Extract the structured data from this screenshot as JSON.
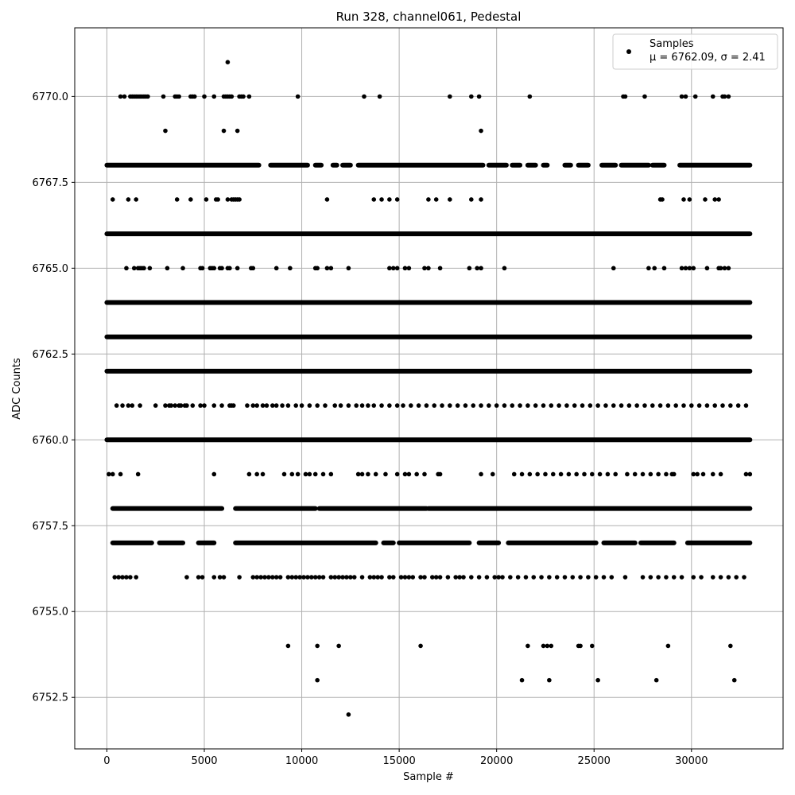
{
  "chart_data": {
    "type": "scatter",
    "title": "Run 328, channel061, Pedestal",
    "xlabel": "Sample #",
    "ylabel": "ADC Counts",
    "xlim": [
      -1650,
      34700
    ],
    "ylim": [
      6751.0,
      6772.0
    ],
    "xticks": [
      0,
      5000,
      10000,
      15000,
      20000,
      25000,
      30000
    ],
    "yticks": [
      6752.5,
      6755.0,
      6757.5,
      6760.0,
      6762.5,
      6765.0,
      6767.5,
      6770.0
    ],
    "xtick_labels": [
      "0",
      "5000",
      "10000",
      "15000",
      "20000",
      "25000",
      "30000"
    ],
    "ytick_labels": [
      "6752.5",
      "6755.0",
      "6757.5",
      "6760.0",
      "6762.5",
      "6765.0",
      "6767.5",
      "6770.0"
    ],
    "grid": true,
    "legend_position": "top-right",
    "marker_color": "#000000",
    "x_range": [
      0,
      33000
    ],
    "series": [
      {
        "name": "Samples",
        "stats_label": "μ = 6762.09, σ = 2.41",
        "levels": [
          {
            "y": 6771,
            "x": [
              6200
            ]
          },
          {
            "y": 6770,
            "x": [
              700,
              900,
              1200,
              1300,
              1400,
              1500,
              1600,
              1700,
              1800,
              1900,
              2000,
              2100,
              2900,
              3500,
              3600,
              3700,
              4300,
              4400,
              4500,
              5000,
              5500,
              6000,
              6100,
              6200,
              6300,
              6400,
              6800,
              6900,
              7000,
              7300,
              9800,
              13200,
              14000,
              17600,
              18700,
              19100,
              21700,
              26500,
              26600,
              27600,
              29500,
              29700,
              30200,
              31100,
              31600,
              31700,
              31900
            ]
          },
          {
            "y": 6769,
            "x": [
              3000,
              6000,
              6700,
              19200
            ]
          },
          {
            "y": 6767,
            "x": [
              300,
              1100,
              1500,
              3600,
              4300,
              5100,
              5600,
              5700,
              6200,
              6400,
              6500,
              6600,
              6700,
              6800,
              11300,
              13700,
              14100,
              14500,
              14900,
              16500,
              16900,
              17600,
              18700,
              19200,
              28400,
              28500,
              29600,
              29900,
              30700,
              31200,
              31400
            ]
          },
          {
            "y": 6765,
            "x": [
              1000,
              1400,
              1600,
              1700,
              1800,
              1900,
              2200,
              3100,
              3900,
              4800,
              4900,
              5300,
              5400,
              5500,
              5800,
              5900,
              6200,
              6300,
              6700,
              7400,
              7500,
              8700,
              9400,
              10700,
              10800,
              11300,
              11500,
              12400,
              14500,
              14700,
              14900,
              15300,
              15500,
              16300,
              16500,
              17100,
              18600,
              19000,
              19200,
              20400,
              26000,
              27800,
              28100,
              28600,
              29500,
              29700,
              29900,
              30100,
              30800,
              31400,
              31500,
              31700,
              31900
            ]
          },
          {
            "y": 6761,
            "x": [
              500,
              800,
              1100,
              1300,
              1700,
              2500,
              3000,
              3200,
              3300,
              3500,
              3700,
              3800,
              4000,
              4100,
              4400,
              4800,
              5000,
              5500,
              5900,
              6300,
              6400,
              6500,
              7200,
              7500,
              7700,
              8000,
              8200,
              8500,
              8700,
              9000,
              9300,
              9700,
              10000,
              10400,
              10800,
              11200,
              11700,
              12000,
              12400,
              12800,
              13100,
              13400,
              13700,
              14100,
              14500,
              14900,
              15200,
              15600,
              16000,
              16400,
              16800,
              17200,
              17600,
              18000,
              18400,
              18800,
              19200,
              19600,
              20000,
              20400,
              20800,
              21200,
              21600,
              22000,
              22400,
              22800,
              23200,
              23600,
              24000,
              24400,
              24800,
              25200,
              25600,
              26000,
              26400,
              26800,
              27200,
              27600,
              28000,
              28400,
              28800,
              29200,
              29600,
              30000,
              30400,
              30800,
              31200,
              31600,
              32000,
              32400,
              32800
            ]
          },
          {
            "y": 6759,
            "x": [
              100,
              300,
              700,
              1600,
              5500,
              7300,
              7700,
              8000,
              9100,
              9500,
              9800,
              10200,
              10400,
              10700,
              11100,
              11500,
              12900,
              13100,
              13400,
              13800,
              14300,
              14900,
              15300,
              15500,
              15900,
              16300,
              17000,
              17100,
              19200,
              19800,
              20900,
              21300,
              21700,
              22100,
              22500,
              22900,
              23300,
              23700,
              24100,
              24500,
              24900,
              25300,
              25700,
              26100,
              26700,
              27100,
              27500,
              27900,
              28300,
              28700,
              29000,
              29100,
              30100,
              30300,
              30600,
              31100,
              31500,
              32800,
              33000
            ]
          },
          {
            "y": 6756,
            "x": [
              400,
              600,
              800,
              1000,
              1200,
              1500,
              4100,
              4700,
              4900,
              5500,
              5800,
              6000,
              6800,
              7500,
              7700,
              7900,
              8100,
              8300,
              8500,
              8700,
              8900,
              9300,
              9500,
              9700,
              9900,
              10100,
              10300,
              10500,
              10700,
              10900,
              11100,
              11500,
              11700,
              11900,
              12100,
              12300,
              12500,
              12700,
              13100,
              13500,
              13700,
              13900,
              14100,
              14500,
              14700,
              15100,
              15300,
              15500,
              15700,
              16100,
              16300,
              16700,
              16900,
              17100,
              17500,
              17900,
              18100,
              18300,
              18700,
              19100,
              19500,
              19900,
              20100,
              20300,
              20700,
              21100,
              21500,
              21900,
              22300,
              22700,
              23100,
              23500,
              23900,
              24300,
              24700,
              25100,
              25500,
              25900,
              26600,
              27500,
              27900,
              28300,
              28700,
              29100,
              29500,
              30100,
              30500,
              31100,
              31500,
              31900,
              32300,
              32700
            ]
          },
          {
            "y": 6754,
            "x": [
              9300,
              10800,
              11900,
              16100,
              21600,
              22400,
              22600,
              22800,
              24200,
              24300,
              24900,
              28800,
              32000
            ]
          },
          {
            "y": 6753,
            "x": [
              10800,
              21300,
              22700,
              25200,
              28200,
              32200
            ]
          },
          {
            "y": 6752,
            "x": [
              12400
            ]
          }
        ],
        "dense_levels": [
          {
            "y": 6768,
            "ranges": [
              [
                0,
                7800
              ],
              [
                8400,
                10300
              ],
              [
                10700,
                11000
              ],
              [
                11600,
                11800
              ],
              [
                12100,
                12500
              ],
              [
                12900,
                19300
              ],
              [
                19600,
                20500
              ],
              [
                20800,
                21200
              ],
              [
                21600,
                22000
              ],
              [
                22400,
                22600
              ],
              [
                23500,
                23800
              ],
              [
                24200,
                24700
              ],
              [
                25400,
                26100
              ],
              [
                26400,
                27800
              ],
              [
                28000,
                28600
              ],
              [
                29400,
                33000
              ]
            ]
          },
          {
            "y": 6766,
            "ranges": [
              [
                0,
                33000
              ]
            ]
          },
          {
            "y": 6764,
            "ranges": [
              [
                0,
                33000
              ]
            ]
          },
          {
            "y": 6763,
            "ranges": [
              [
                0,
                33000
              ]
            ]
          },
          {
            "y": 6762,
            "ranges": [
              [
                0,
                33000
              ]
            ]
          },
          {
            "y": 6760,
            "ranges": [
              [
                0,
                33000
              ]
            ]
          },
          {
            "y": 6758,
            "ranges": [
              [
                300,
                5900
              ],
              [
                6600,
                10700
              ],
              [
                10900,
                16400
              ],
              [
                16500,
                33000
              ]
            ]
          },
          {
            "y": 6757,
            "ranges": [
              [
                300,
                2300
              ],
              [
                2700,
                3900
              ],
              [
                4700,
                5500
              ],
              [
                6600,
                13800
              ],
              [
                14200,
                14700
              ],
              [
                15000,
                18600
              ],
              [
                19100,
                20100
              ],
              [
                20600,
                25100
              ],
              [
                25500,
                27100
              ],
              [
                27400,
                29100
              ],
              [
                29800,
                33000
              ]
            ]
          }
        ]
      }
    ]
  }
}
